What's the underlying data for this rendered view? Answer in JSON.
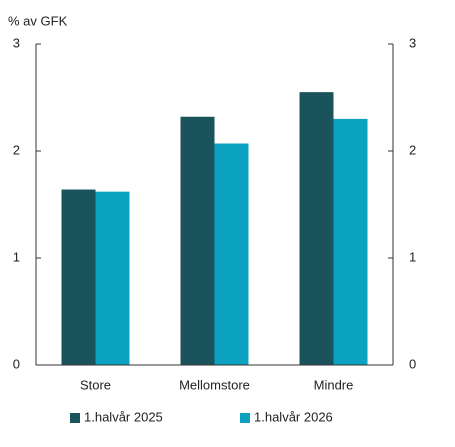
{
  "chart_data": {
    "type": "bar",
    "y_label": "% av GFK",
    "categories": [
      "Store",
      "Mellomstore",
      "Mindre"
    ],
    "series": [
      {
        "name": "1.halvår 2025",
        "color": "#1a535c",
        "values": [
          1.64,
          2.32,
          2.55
        ]
      },
      {
        "name": "1.halvår 2026",
        "color": "#0aa2c0",
        "values": [
          1.62,
          2.07,
          2.3
        ]
      }
    ],
    "ylim": [
      0,
      3
    ],
    "yticks": [
      0,
      1,
      2,
      3
    ],
    "y2lim": [
      0,
      3
    ],
    "y2ticks": [
      0,
      1,
      2,
      3
    ],
    "grid": false,
    "legend": "bottom"
  }
}
